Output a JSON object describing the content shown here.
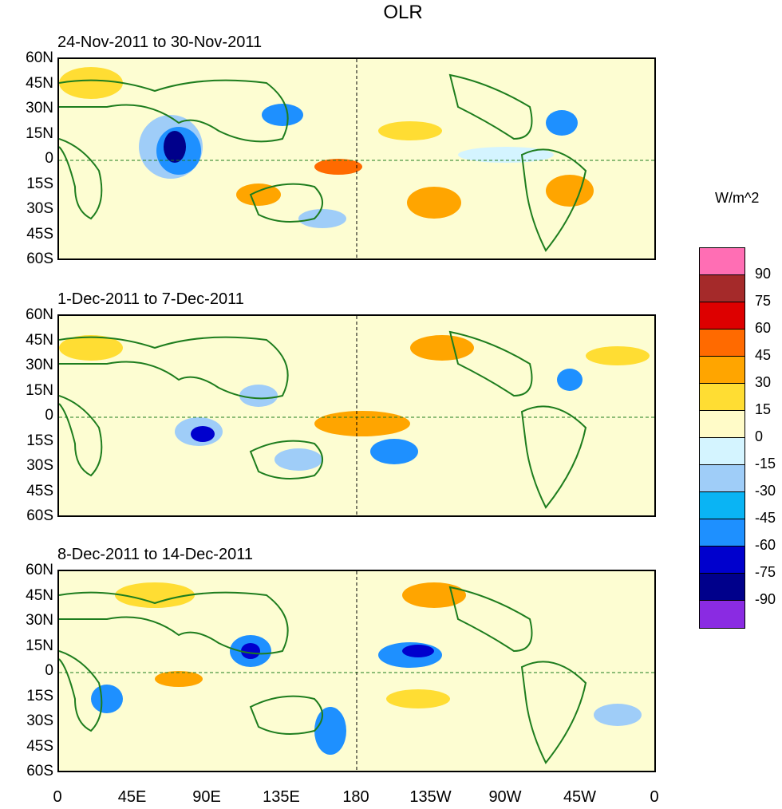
{
  "title": "OLR",
  "panels": [
    {
      "label": "24-Nov-2011 to 30-Nov-2011"
    },
    {
      "label": "1-Dec-2011 to 7-Dec-2011"
    },
    {
      "label": "8-Dec-2011 to 14-Dec-2011"
    }
  ],
  "lat_labels": [
    "60N",
    "45N",
    "30N",
    "15N",
    "0",
    "15S",
    "30S",
    "45S",
    "60S"
  ],
  "lon_labels": [
    "0",
    "45E",
    "90E",
    "135E",
    "180",
    "135W",
    "90W",
    "45W",
    "0"
  ],
  "colorbar": {
    "title": "W/m^2",
    "labels": [
      "90",
      "75",
      "60",
      "45",
      "30",
      "15",
      "0",
      "-15",
      "-30",
      "-45",
      "-60",
      "-75",
      "-90"
    ],
    "colors": [
      "#ff6eb4",
      "#a52a2a",
      "#dd0000",
      "#ff6a00",
      "#ffa500",
      "#ffdd33",
      "#fffbc8",
      "#d4f4ff",
      "#9fcdf8",
      "#0ab4f4",
      "#1e90ff",
      "#0000cd",
      "#00008b",
      "#8a2be2"
    ]
  },
  "colors": {
    "land_outline": "#1e7d1e",
    "background": "#fdfdd2"
  }
}
